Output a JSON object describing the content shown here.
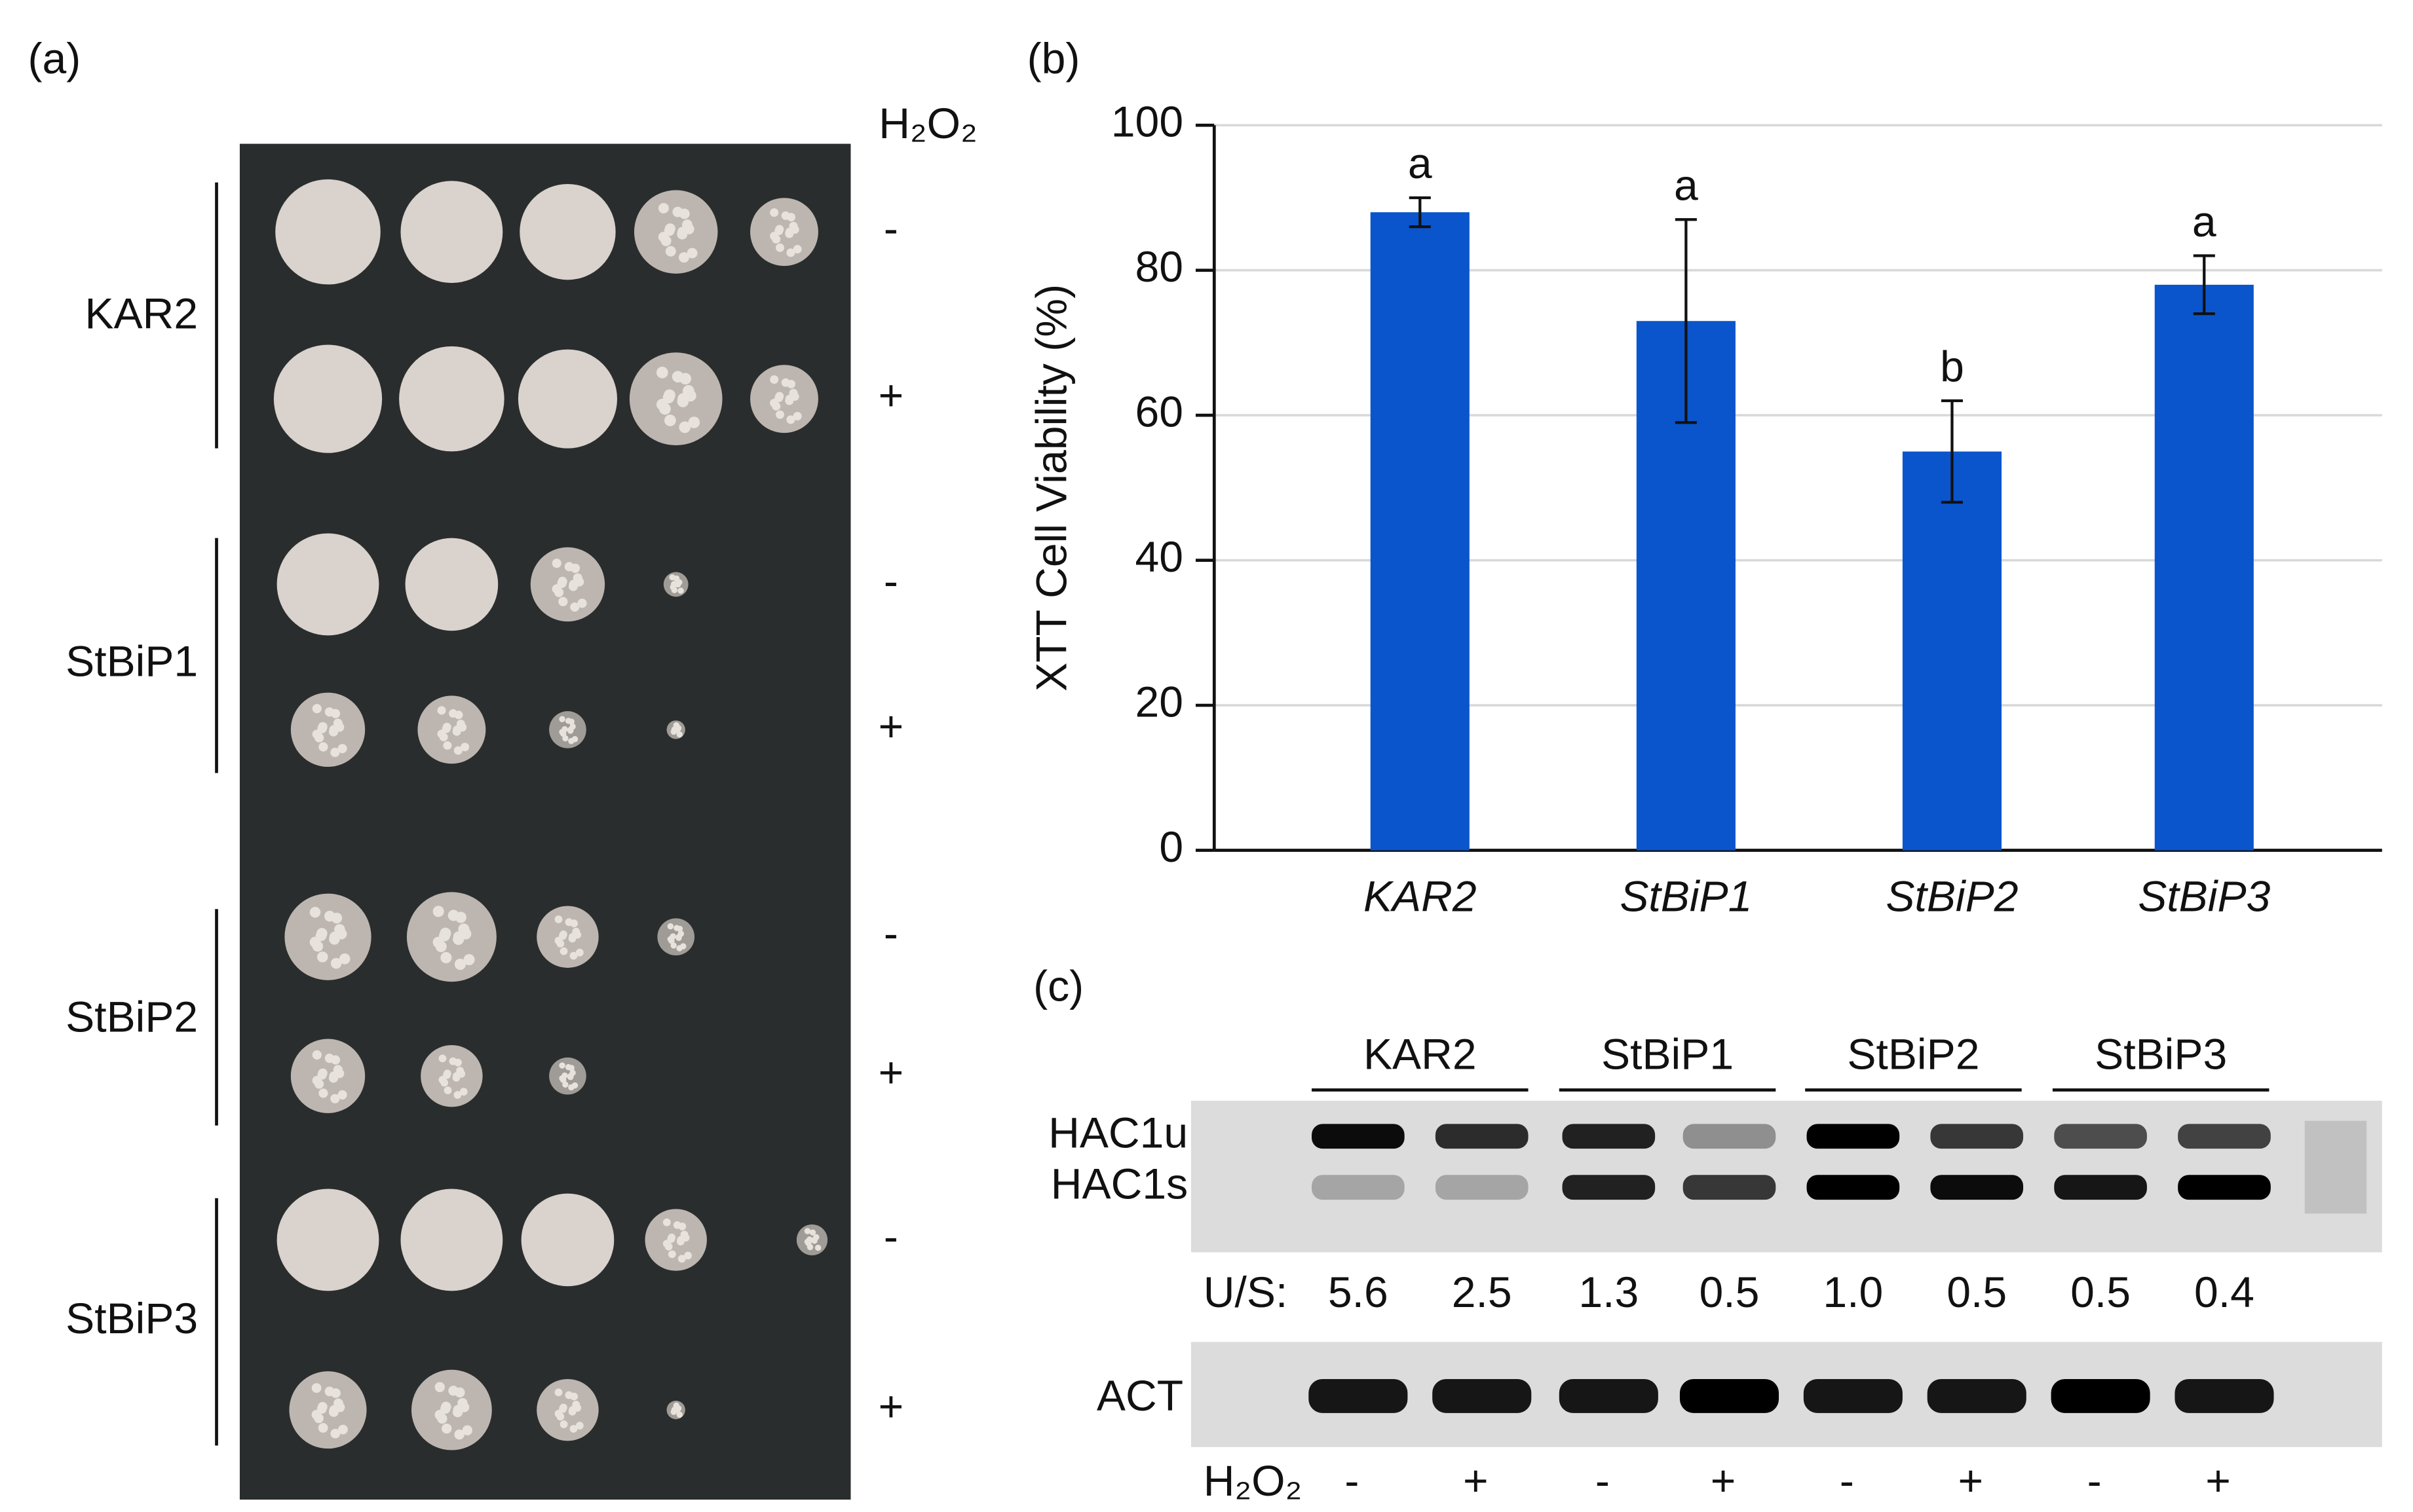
{
  "panel_a": {
    "label": "(a)",
    "treatment": "H₂O₂",
    "strains": [
      "KAR2",
      "StBiP1",
      "StBiP2",
      "StBiP3"
    ],
    "rows": [
      "-",
      "+",
      "-",
      "+",
      "-",
      "+",
      "-",
      "+"
    ]
  },
  "chart_data": {
    "type": "bar",
    "label": "(b)",
    "y_label": "XTT Cell Viability (%)",
    "categories": [
      "KAR2",
      "StBiP1",
      "StBiP2",
      "StBiP3"
    ],
    "values": [
      88,
      73,
      55,
      78
    ],
    "errors": [
      2,
      14,
      7,
      4
    ],
    "annotations": [
      "a",
      "a",
      "b",
      "a"
    ],
    "color": "#0a55cc",
    "ylim": [
      0,
      100
    ],
    "yticks": [
      0,
      20,
      40,
      60,
      80,
      100
    ],
    "grid": true
  },
  "panel_c": {
    "label": "(c)",
    "groups": [
      "KAR2",
      "StBiP1",
      "StBiP2",
      "StBiP3"
    ],
    "bands": [
      "HAC1u",
      "HAC1s"
    ],
    "ratio_label": "U/S:",
    "ratios": [
      "5.6",
      "2.5",
      "1.3",
      "0.5",
      "1.0",
      "0.5",
      "0.5",
      "0.4"
    ],
    "loading_control": "ACT",
    "treatment": "H₂O₂",
    "lanes": [
      "-",
      "+",
      "-",
      "+",
      "-",
      "+",
      "-",
      "+"
    ]
  }
}
